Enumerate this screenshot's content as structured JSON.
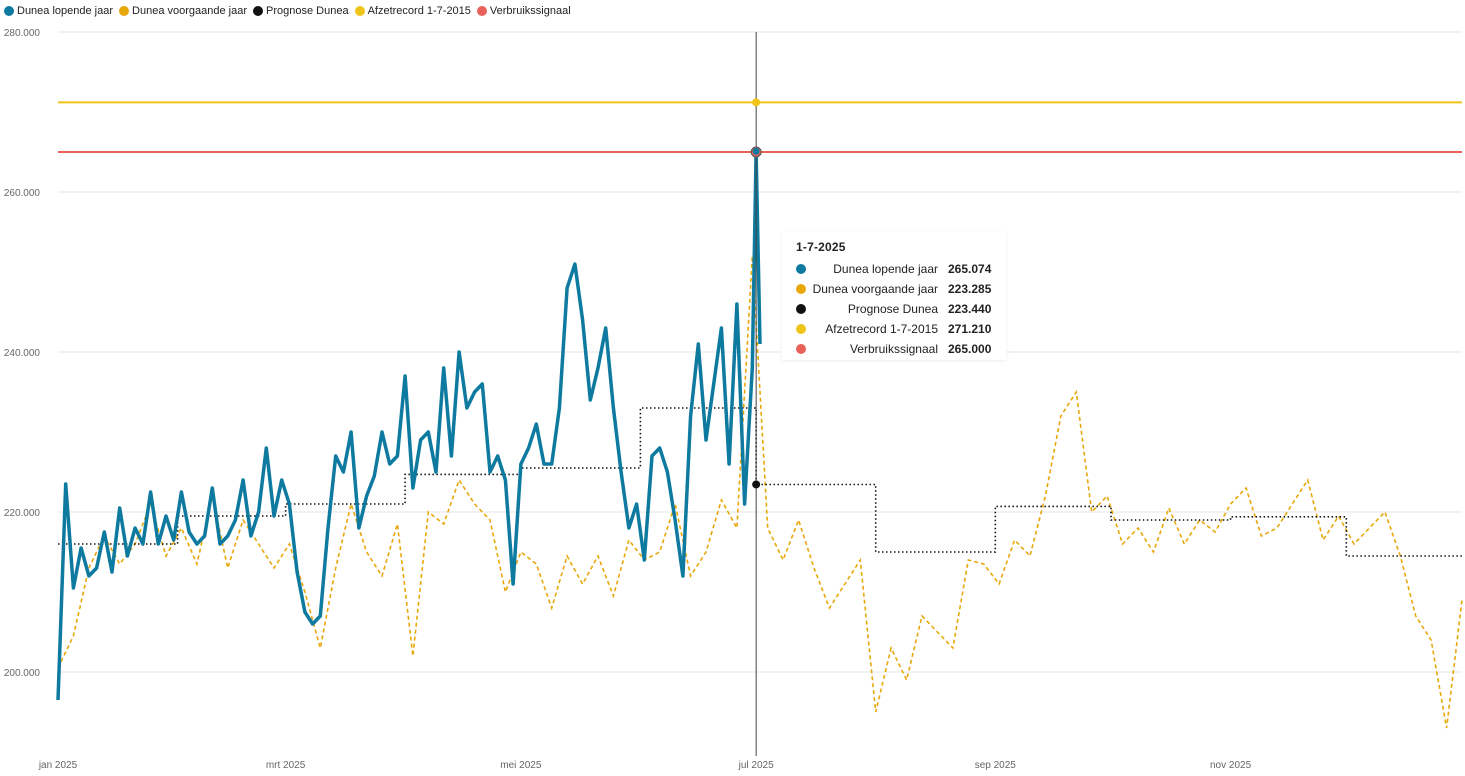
{
  "chart_data": {
    "type": "line",
    "title": "",
    "xlabel": "",
    "ylabel": "",
    "ylim": [
      190000,
      280000
    ],
    "y_ticks": [
      200000,
      220000,
      240000,
      260000,
      280000
    ],
    "y_tick_labels": [
      "200.000",
      "220.000",
      "240.000",
      "260.000",
      "280.000"
    ],
    "x_range": [
      "2025-01-01",
      "2025-12-31"
    ],
    "x_ticks": [
      "2025-01-01",
      "2025-03-01",
      "2025-05-01",
      "2025-07-01",
      "2025-09-01",
      "2025-11-01"
    ],
    "x_tick_labels": [
      "jan 2025",
      "mrt 2025",
      "mei 2025",
      "jul 2025",
      "sep 2025",
      "nov 2025"
    ],
    "grid": "horizontal",
    "legend_position": "top-left",
    "series": [
      {
        "name": "Dunea lopende jaar",
        "color": "#0e7aa0",
        "style": "solid",
        "x": [
          "2025-01-01",
          "2025-01-03",
          "2025-01-05",
          "2025-01-07",
          "2025-01-09",
          "2025-01-11",
          "2025-01-13",
          "2025-01-15",
          "2025-01-17",
          "2025-01-19",
          "2025-01-21",
          "2025-01-23",
          "2025-01-25",
          "2025-01-27",
          "2025-01-29",
          "2025-01-31",
          "2025-02-02",
          "2025-02-04",
          "2025-02-06",
          "2025-02-08",
          "2025-02-10",
          "2025-02-12",
          "2025-02-14",
          "2025-02-16",
          "2025-02-18",
          "2025-02-20",
          "2025-02-22",
          "2025-02-24",
          "2025-02-26",
          "2025-02-28",
          "2025-03-02",
          "2025-03-04",
          "2025-03-06",
          "2025-03-08",
          "2025-03-10",
          "2025-03-12",
          "2025-03-14",
          "2025-03-16",
          "2025-03-18",
          "2025-03-20",
          "2025-03-22",
          "2025-03-24",
          "2025-03-26",
          "2025-03-28",
          "2025-03-30",
          "2025-04-01",
          "2025-04-03",
          "2025-04-05",
          "2025-04-07",
          "2025-04-09",
          "2025-04-11",
          "2025-04-13",
          "2025-04-15",
          "2025-04-17",
          "2025-04-19",
          "2025-04-21",
          "2025-04-23",
          "2025-04-25",
          "2025-04-27",
          "2025-04-29",
          "2025-05-01",
          "2025-05-03",
          "2025-05-05",
          "2025-05-07",
          "2025-05-09",
          "2025-05-11",
          "2025-05-13",
          "2025-05-15",
          "2025-05-17",
          "2025-05-19",
          "2025-05-21",
          "2025-05-23",
          "2025-05-25",
          "2025-05-27",
          "2025-05-29",
          "2025-05-31",
          "2025-06-02",
          "2025-06-04",
          "2025-06-06",
          "2025-06-08",
          "2025-06-10",
          "2025-06-12",
          "2025-06-14",
          "2025-06-16",
          "2025-06-18",
          "2025-06-20",
          "2025-06-22",
          "2025-06-24",
          "2025-06-26",
          "2025-06-28",
          "2025-06-30",
          "2025-07-01",
          "2025-07-02"
        ],
        "values": [
          196500,
          223500,
          210500,
          215500,
          212000,
          213000,
          217500,
          212500,
          220500,
          214500,
          218000,
          216000,
          222500,
          216000,
          219500,
          216500,
          222500,
          217500,
          216000,
          217000,
          223000,
          216000,
          217000,
          219000,
          224000,
          217000,
          220000,
          228000,
          219500,
          224000,
          221000,
          212500,
          207500,
          206000,
          207000,
          218000,
          227000,
          225000,
          230000,
          218000,
          222000,
          224500,
          230000,
          226000,
          227000,
          237000,
          223000,
          229000,
          230000,
          225000,
          238000,
          227000,
          240000,
          233000,
          235000,
          236000,
          225000,
          227000,
          224000,
          211000,
          226000,
          228000,
          231000,
          226000,
          226000,
          233000,
          248000,
          251000,
          244000,
          234000,
          238000,
          243000,
          233000,
          225000,
          218000,
          221000,
          214000,
          227000,
          228000,
          225000,
          219000,
          212000,
          232000,
          241000,
          229000,
          236000,
          243000,
          226000,
          246000,
          221000,
          238000,
          265000,
          241000
        ]
      },
      {
        "name": "Dunea voorgaande jaar",
        "color": "#e8a80c",
        "style": "dashed",
        "x": [
          "2025-01-01",
          "2025-01-05",
          "2025-01-09",
          "2025-01-13",
          "2025-01-17",
          "2025-01-21",
          "2025-01-25",
          "2025-01-29",
          "2025-02-02",
          "2025-02-06",
          "2025-02-10",
          "2025-02-14",
          "2025-02-18",
          "2025-02-22",
          "2025-02-26",
          "2025-03-02",
          "2025-03-06",
          "2025-03-10",
          "2025-03-14",
          "2025-03-18",
          "2025-03-22",
          "2025-03-26",
          "2025-03-30",
          "2025-04-03",
          "2025-04-07",
          "2025-04-11",
          "2025-04-15",
          "2025-04-19",
          "2025-04-23",
          "2025-04-27",
          "2025-05-01",
          "2025-05-05",
          "2025-05-09",
          "2025-05-13",
          "2025-05-17",
          "2025-05-21",
          "2025-05-25",
          "2025-05-29",
          "2025-06-02",
          "2025-06-06",
          "2025-06-10",
          "2025-06-14",
          "2025-06-18",
          "2025-06-22",
          "2025-06-26",
          "2025-06-30",
          "2025-07-04",
          "2025-07-08",
          "2025-07-12",
          "2025-07-16",
          "2025-07-20",
          "2025-07-24",
          "2025-07-28",
          "2025-08-01",
          "2025-08-05",
          "2025-08-09",
          "2025-08-13",
          "2025-08-17",
          "2025-08-21",
          "2025-08-25",
          "2025-08-29",
          "2025-09-02",
          "2025-09-06",
          "2025-09-10",
          "2025-09-14",
          "2025-09-18",
          "2025-09-22",
          "2025-09-26",
          "2025-09-30",
          "2025-10-04",
          "2025-10-08",
          "2025-10-12",
          "2025-10-16",
          "2025-10-20",
          "2025-10-24",
          "2025-10-28",
          "2025-11-01",
          "2025-11-05",
          "2025-11-09",
          "2025-11-13",
          "2025-11-17",
          "2025-11-21",
          "2025-11-25",
          "2025-11-29",
          "2025-12-03",
          "2025-12-07",
          "2025-12-11",
          "2025-12-15",
          "2025-12-19",
          "2025-12-23",
          "2025-12-27",
          "2025-12-31"
        ],
        "values": [
          200500,
          204500,
          213000,
          217000,
          213500,
          216000,
          221000,
          214500,
          218000,
          213500,
          222000,
          213000,
          219000,
          216000,
          213000,
          216000,
          210000,
          203000,
          213000,
          221000,
          215000,
          212000,
          218500,
          202000,
          220000,
          218500,
          224000,
          221000,
          219000,
          210000,
          215000,
          213500,
          208000,
          214500,
          211000,
          214500,
          209500,
          216500,
          214000,
          215000,
          221000,
          212000,
          215000,
          221500,
          218000,
          252000,
          218000,
          214000,
          219000,
          213000,
          208000,
          211000,
          214000,
          195000,
          203000,
          199000,
          207000,
          205000,
          203000,
          214000,
          213500,
          211000,
          216500,
          214500,
          222000,
          232000,
          235000,
          220000,
          222000,
          216000,
          218000,
          215000,
          220500,
          216000,
          219000,
          217500,
          221000,
          223000,
          217000,
          218000,
          221000,
          224000,
          216500,
          219500,
          216000,
          218000,
          220000,
          214500,
          207000,
          204000,
          193000,
          209000
        ]
      },
      {
        "name": "Prognose Dunea",
        "color": "#111111",
        "style": "dotted-step",
        "x": [
          "2025-01-01",
          "2025-02-01",
          "2025-03-01",
          "2025-04-01",
          "2025-05-01",
          "2025-06-01",
          "2025-07-01",
          "2025-08-01",
          "2025-09-01",
          "2025-10-01",
          "2025-11-01",
          "2025-12-01",
          "2025-12-31"
        ],
        "values": [
          216000,
          219500,
          221000,
          224700,
          225500,
          233000,
          223440,
          215000,
          220700,
          219000,
          219400,
          214500,
          214500
        ]
      },
      {
        "name": "Afzetrecord 1-7-2015",
        "color": "#f0c418",
        "style": "solid",
        "constant": 271210
      },
      {
        "name": "Verbruikssignaal",
        "color": "#e8625a",
        "style": "solid",
        "constant": 265000
      }
    ],
    "tooltip": {
      "date": "1-7-2025",
      "rows": [
        {
          "label": "Dunea lopende jaar",
          "value": "265.074",
          "color": "#0e7aa0"
        },
        {
          "label": "Dunea voorgaande jaar",
          "value": "223.285",
          "color": "#e8a80c"
        },
        {
          "label": "Prognose Dunea",
          "value": "223.440",
          "color": "#111111"
        },
        {
          "label": "Afzetrecord 1-7-2015",
          "value": "271.210",
          "color": "#f0c418"
        },
        {
          "label": "Verbruikssignaal",
          "value": "265.000",
          "color": "#e8625a"
        }
      ]
    },
    "hover_date": "2025-07-01",
    "hover_points": [
      265074,
      223440,
      271210,
      265000
    ]
  }
}
